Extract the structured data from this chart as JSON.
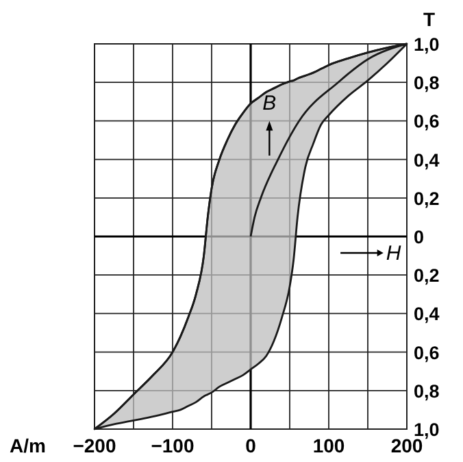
{
  "chart_data": {
    "type": "line",
    "xlabel": "A/m",
    "ylabel": "T",
    "annotations": [
      "B",
      "H"
    ],
    "xlim": [
      -200,
      200
    ],
    "ylim": [
      -1,
      1
    ],
    "xticks": [
      {
        "value": -200,
        "label": "−200"
      },
      {
        "value": -100,
        "label": "−100"
      },
      0,
      100,
      200
    ],
    "yticks": [
      {
        "value": -1,
        "label": "1,0"
      },
      {
        "value": -0.8,
        "label": "0,8"
      },
      {
        "value": -0.6,
        "label": "0,6"
      },
      {
        "value": -0.4,
        "label": "0,4"
      },
      {
        "value": -0.2,
        "label": "0,2"
      },
      0,
      {
        "value": 0.2,
        "label": "0,2"
      },
      {
        "value": 0.4,
        "label": "0,4"
      },
      {
        "value": 0.6,
        "label": "0,6"
      },
      {
        "value": 0.8,
        "label": "0,8"
      },
      {
        "value": 1,
        "label": "1,0"
      }
    ],
    "grid": true,
    "marker": "none",
    "line_style": "solid",
    "series": [
      {
        "color": "#1a1a1a",
        "x": [
          -200,
          -175,
          -150,
          -125,
          -100,
          -90,
          -80,
          -70,
          -60,
          -55,
          -50,
          -40,
          -30,
          -20,
          -10,
          0,
          10,
          20,
          30,
          40,
          50,
          55,
          60,
          70,
          80,
          90,
          100,
          125,
          150,
          175,
          200
        ],
        "values": [
          -1,
          -0.92,
          -0.82,
          -0.72,
          -0.6,
          -0.52,
          -0.42,
          -0.3,
          -0.1,
          0.1,
          0.25,
          0.4,
          0.5,
          0.58,
          0.64,
          0.69,
          0.72,
          0.75,
          0.77,
          0.79,
          0.805,
          0.81,
          0.82,
          0.835,
          0.85,
          0.87,
          0.89,
          0.925,
          0.955,
          0.98,
          1
        ],
        "upper": [
          -1,
          -0.92,
          -0.82,
          -0.72,
          -0.6,
          -0.52,
          -0.42,
          -0.3,
          -0.1,
          0.1,
          0.25,
          0.4,
          0.5,
          0.58,
          0.64,
          0.69,
          0.72,
          0.75,
          0.77,
          0.79,
          0.805,
          0.81,
          0.82,
          0.835,
          0.85,
          0.87,
          0.89,
          0.925,
          0.955,
          0.98,
          1
        ],
        "lower": [
          -1,
          -0.975,
          -0.955,
          -0.935,
          -0.91,
          -0.9,
          -0.88,
          -0.86,
          -0.83,
          -0.82,
          -0.81,
          -0.78,
          -0.76,
          -0.74,
          -0.72,
          -0.69,
          -0.66,
          -0.62,
          -0.54,
          -0.42,
          -0.26,
          -0.12,
          0.1,
          0.36,
          0.48,
          0.58,
          0.63,
          0.73,
          0.81,
          0.9,
          1
        ]
      },
      {
        "color": "#1a1a1a",
        "x": [
          0,
          5,
          13,
          35,
          62,
          112,
          150,
          200
        ],
        "values": [
          0,
          0.1,
          0.2,
          0.4,
          0.6,
          0.8,
          0.92,
          1
        ]
      }
    ]
  }
}
